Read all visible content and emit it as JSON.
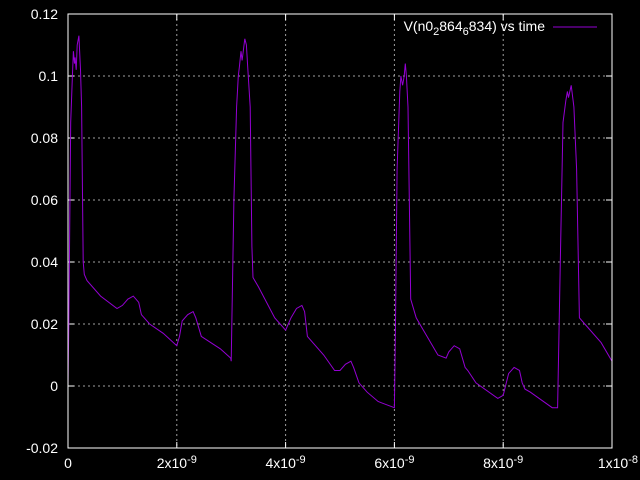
{
  "chart_data": {
    "type": "line",
    "title": "",
    "xlabel": "",
    "ylabel": "",
    "xlim": [
      0,
      1e-08
    ],
    "ylim": [
      -0.02,
      0.12
    ],
    "grid": true,
    "legend_position": "top-right",
    "x_ticks": [
      {
        "value": 0,
        "label": "0"
      },
      {
        "value": 2e-09,
        "label": "2x10",
        "exp": "-9"
      },
      {
        "value": 4e-09,
        "label": "4x10",
        "exp": "-9"
      },
      {
        "value": 6e-09,
        "label": "6x10",
        "exp": "-9"
      },
      {
        "value": 8e-09,
        "label": "8x10",
        "exp": "-9"
      },
      {
        "value": 1e-08,
        "label": "1x10",
        "exp": "-8"
      }
    ],
    "y_ticks": [
      {
        "value": -0.02,
        "label": "-0.02"
      },
      {
        "value": 0,
        "label": "0"
      },
      {
        "value": 0.02,
        "label": "0.02"
      },
      {
        "value": 0.04,
        "label": "0.04"
      },
      {
        "value": 0.06,
        "label": "0.06"
      },
      {
        "value": 0.08,
        "label": "0.08"
      },
      {
        "value": 0.1,
        "label": "0.1"
      },
      {
        "value": 0.12,
        "label": "0.12"
      }
    ],
    "legend": {
      "parts": [
        {
          "text": "V(n0",
          "sub": false
        },
        {
          "text": "2",
          "sub": true
        },
        {
          "text": "864",
          "sub": false
        },
        {
          "text": "6",
          "sub": true
        },
        {
          "text": "834) vs time",
          "sub": false
        }
      ]
    },
    "series": [
      {
        "name": "V(n02864 6834) vs time",
        "color": "#9400d3",
        "x": [
          0,
          1.5e-11,
          5e-11,
          8e-11,
          1e-10,
          1.2e-10,
          1.3e-10,
          1.5e-10,
          1.7e-10,
          2e-10,
          2.3e-10,
          2.5e-10,
          2.8e-10,
          3e-10,
          3.5e-10,
          6e-10,
          9e-10,
          1e-09,
          1.05e-09,
          1.1e-09,
          1.2e-09,
          1.3e-09,
          1.35e-09,
          1.4e-09,
          1.5e-09,
          1.75e-09,
          2e-09,
          2.05e-09,
          2.1e-09,
          2.2e-09,
          2.3e-09,
          2.35e-09,
          2.45e-09,
          2.8e-09,
          2.99e-09,
          3e-09,
          3.05e-09,
          3.1e-09,
          3.13e-09,
          3.15e-09,
          3.18e-09,
          3.2e-09,
          3.25e-09,
          3.28e-09,
          3.3e-09,
          3.35e-09,
          3.38e-09,
          3.4e-09,
          3.5e-09,
          3.8e-09,
          3.95e-09,
          4e-09,
          4.1e-09,
          4.2e-09,
          4.3e-09,
          4.35e-09,
          4.4e-09,
          4.7e-09,
          4.9e-09,
          5e-09,
          5.1e-09,
          5.2e-09,
          5.25e-09,
          5.35e-09,
          5.5e-09,
          5.7e-09,
          6e-09,
          6.02e-09,
          6.05e-09,
          6.1e-09,
          6.12e-09,
          6.15e-09,
          6.18e-09,
          6.2e-09,
          6.22e-09,
          6.25e-09,
          6.3e-09,
          6.4e-09,
          6.5e-09,
          6.8e-09,
          6.95e-09,
          7e-09,
          7.1e-09,
          7.2e-09,
          7.3e-09,
          7.35e-09,
          7.5e-09,
          7.9e-09,
          8e-09,
          8.1e-09,
          8.2e-09,
          8.3e-09,
          8.35e-09,
          8.4e-09,
          8.5e-09,
          8.9e-09,
          9e-09,
          9.05e-09,
          9.1e-09,
          9.15e-09,
          9.18e-09,
          9.2e-09,
          9.25e-09,
          9.3e-09,
          9.35e-09,
          9.4e-09,
          9.5e-09,
          9.8e-09,
          1e-08
        ],
        "y": [
          0,
          0.02,
          0.085,
          0.1,
          0.108,
          0.104,
          0.106,
          0.102,
          0.11,
          0.113,
          0.102,
          0.09,
          0.04,
          0.036,
          0.034,
          0.029,
          0.025,
          0.026,
          0.027,
          0.028,
          0.029,
          0.027,
          0.023,
          0.022,
          0.02,
          0.017,
          0.013,
          0.016,
          0.021,
          0.023,
          0.024,
          0.022,
          0.016,
          0.012,
          0.009,
          0.008,
          0.06,
          0.09,
          0.1,
          0.103,
          0.108,
          0.105,
          0.112,
          0.11,
          0.104,
          0.09,
          0.045,
          0.035,
          0.032,
          0.022,
          0.019,
          0.018,
          0.022,
          0.025,
          0.026,
          0.024,
          0.016,
          0.01,
          0.005,
          0.005,
          0.007,
          0.008,
          0.006,
          0.001,
          -0.002,
          -0.005,
          -0.007,
          0.02,
          0.07,
          0.095,
          0.1,
          0.097,
          0.1,
          0.104,
          0.1,
          0.09,
          0.028,
          0.022,
          0.019,
          0.01,
          0.009,
          0.011,
          0.013,
          0.012,
          0.006,
          0.005,
          0.001,
          -0.004,
          -0.003,
          0.004,
          0.006,
          0.005,
          0.001,
          -0.001,
          -0.002,
          -0.007,
          -0.007,
          0.04,
          0.085,
          0.092,
          0.095,
          0.093,
          0.097,
          0.09,
          0.07,
          0.022,
          0.02,
          0.014,
          0.008
        ]
      }
    ]
  }
}
